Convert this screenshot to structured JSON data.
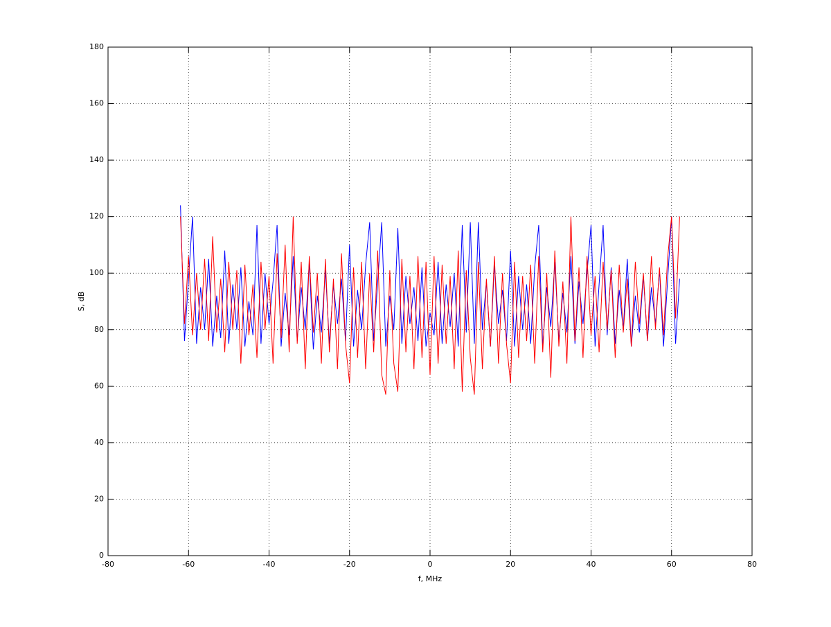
{
  "chart_data": {
    "type": "line",
    "xlabel": "f, MHz",
    "ylabel": "S, dB",
    "x": [
      -62,
      -61,
      -60,
      -59,
      -58,
      -57,
      -56,
      -55,
      -54,
      -53,
      -52,
      -51,
      -50,
      -49,
      -48,
      -47,
      -46,
      -45,
      -44,
      -43,
      -42,
      -41,
      -40,
      -39,
      -38,
      -37,
      -36,
      -35,
      -34,
      -33,
      -32,
      -31,
      -30,
      -29,
      -28,
      -27,
      -26,
      -25,
      -24,
      -23,
      -22,
      -21,
      -20,
      -19,
      -18,
      -17,
      -16,
      -15,
      -14,
      -13,
      -12,
      -11,
      -10,
      -9,
      -8,
      -7,
      -6,
      -5,
      -4,
      -3,
      -2,
      -1,
      0,
      1,
      2,
      3,
      4,
      5,
      6,
      7,
      8,
      9,
      10,
      11,
      12,
      13,
      14,
      15,
      16,
      17,
      18,
      19,
      20,
      21,
      22,
      23,
      24,
      25,
      26,
      27,
      28,
      29,
      30,
      31,
      32,
      33,
      34,
      35,
      36,
      37,
      38,
      39,
      40,
      41,
      42,
      43,
      44,
      45,
      46,
      47,
      48,
      49,
      50,
      51,
      52,
      53,
      54,
      55,
      56,
      57,
      58,
      59,
      60,
      61,
      62
    ],
    "series": [
      {
        "color": "#0000ff",
        "values": [
          124,
          76,
          98,
          120,
          75,
          95,
          80,
          105,
          74,
          92,
          77,
          108,
          75,
          96,
          80,
          102,
          74,
          90,
          78,
          117,
          75,
          100,
          82,
          97,
          117,
          74,
          93,
          78,
          106,
          76,
          95,
          80,
          104,
          73,
          92,
          79,
          101,
          75,
          96,
          82,
          98,
          76,
          110,
          74,
          94,
          80,
          103,
          118,
          76,
          97,
          118,
          74,
          92,
          80,
          116,
          75,
          99,
          82,
          95,
          76,
          102,
          74,
          86,
          78,
          104,
          75,
          96,
          81,
          100,
          74,
          117,
          79,
          118,
          75,
          118,
          80,
          97,
          74,
          103,
          82,
          94,
          76,
          108,
          74,
          99,
          80,
          96,
          75,
          102,
          117,
          74,
          95,
          81,
          104,
          76,
          93,
          79,
          106,
          75,
          97,
          82,
          100,
          117,
          74,
          96,
          117,
          78,
          102,
          75,
          94,
          80,
          105,
          74,
          92,
          79,
          99,
          76,
          95,
          82,
          101,
          74,
          97,
          120,
          75,
          98
        ]
      },
      {
        "color": "#ff0000",
        "values": [
          120,
          82,
          106,
          78,
          100,
          80,
          105,
          76,
          113,
          79,
          98,
          72,
          104,
          80,
          101,
          68,
          103,
          78,
          96,
          70,
          104,
          80,
          99,
          68,
          107,
          77,
          110,
          72,
          120,
          75,
          104,
          66,
          106,
          79,
          100,
          68,
          105,
          72,
          98,
          66,
          107,
          75,
          61,
          102,
          70,
          104,
          66,
          100,
          72,
          108,
          64,
          57,
          101,
          68,
          58,
          105,
          72,
          99,
          66,
          106,
          70,
          104,
          64,
          106,
          68,
          103,
          75,
          99,
          66,
          108,
          58,
          101,
          70,
          57,
          104,
          66,
          98,
          74,
          106,
          68,
          100,
          75,
          61,
          104,
          70,
          99,
          76,
          103,
          68,
          106,
          72,
          100,
          63,
          108,
          74,
          97,
          68,
          120,
          76,
          102,
          70,
          106,
          78,
          99,
          72,
          104,
          80,
          101,
          70,
          103,
          79,
          98,
          74,
          104,
          82,
          100,
          76,
          106,
          80,
          102,
          78,
          105,
          120,
          84,
          120
        ]
      }
    ],
    "xlim": [
      -80,
      80
    ],
    "xticks": [
      -80,
      -60,
      -40,
      -20,
      0,
      20,
      40,
      60,
      80
    ],
    "ylim": [
      0,
      180
    ],
    "yticks": [
      0,
      20,
      40,
      60,
      80,
      100,
      120,
      140,
      160,
      180
    ],
    "grid": true
  }
}
